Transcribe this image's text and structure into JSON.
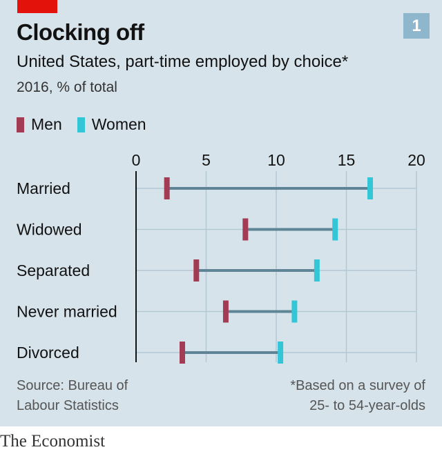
{
  "header": {
    "title": "Clocking off",
    "badge": "1",
    "subtitle": "United States, part-time employed by choice*",
    "unit": "2016, % of total"
  },
  "colors": {
    "men": "#a33b54",
    "women": "#33c6d6",
    "connector": "#5e8496",
    "grid": "#b2c8d3",
    "brand_red": "#e3120b"
  },
  "footer": {
    "source": "Source: Bureau of Labour Statistics",
    "source_line1": "Source: Bureau of",
    "source_line2": "Labour Statistics",
    "footnote_line1": "*Based on a survey of",
    "footnote_line2": "25- to 54-year-olds",
    "brand": "The Economist"
  },
  "chart_data": {
    "type": "dumbbell",
    "title": "Clocking off",
    "subtitle": "United States, part-time employed by choice*",
    "unit": "2016, % of total",
    "categories": [
      "Married",
      "Widowed",
      "Separated",
      "Never married",
      "Divorced"
    ],
    "series": [
      {
        "name": "Men",
        "values": [
          2.2,
          7.8,
          4.3,
          6.4,
          3.3
        ]
      },
      {
        "name": "Women",
        "values": [
          16.7,
          14.2,
          12.9,
          11.3,
          10.3
        ]
      }
    ],
    "xlim": [
      0,
      20
    ],
    "xticks": [
      "0",
      "5",
      "10",
      "15",
      "20"
    ],
    "grid": true,
    "legend": "top-left"
  }
}
